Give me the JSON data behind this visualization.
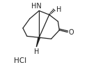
{
  "background_color": "#ffffff",
  "line_color": "#222222",
  "text_color": "#222222",
  "figsize": [
    1.28,
    0.97
  ],
  "dpi": 100,
  "HN_label": "HN",
  "H_top_label": "H",
  "H_bottom_label": "H",
  "O_label": "O",
  "HCl_label": "HCl",
  "font_size_labels": 7.0,
  "font_size_HCl": 7.5,
  "lw": 0.9
}
